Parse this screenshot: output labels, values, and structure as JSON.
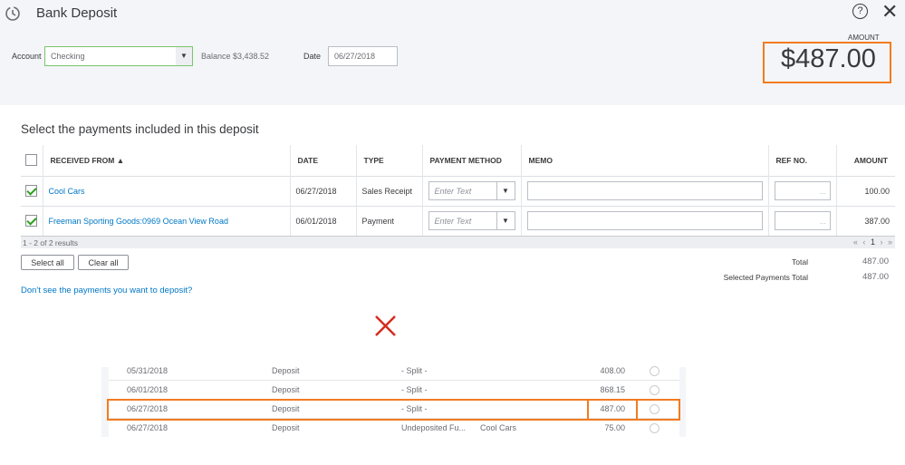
{
  "header": {
    "title": "Bank Deposit",
    "account_label": "Account",
    "account_value": "Checking",
    "balance": "Balance $3,438.52",
    "date_label": "Date",
    "date_value": "06/27/2018",
    "amount_label": "AMOUNT",
    "amount_value": "$487.00",
    "help": "?",
    "close": "✕"
  },
  "section_title": "Select the payments included in this deposit",
  "table": {
    "columns": [
      "RECEIVED FROM ▲",
      "DATE",
      "TYPE",
      "PAYMENT METHOD",
      "MEMO",
      "REF NO.",
      "AMOUNT"
    ],
    "rows": [
      {
        "checked": true,
        "from": "Cool Cars",
        "date": "06/27/2018",
        "type": "Sales Receipt",
        "method_placeholder": "Enter Text",
        "ref": "...",
        "amount": "100.00"
      },
      {
        "checked": true,
        "from": "Freeman Sporting Goods:0969 Ocean View Road",
        "date": "06/01/2018",
        "type": "Payment",
        "method_placeholder": "Enter Text",
        "ref": "...",
        "amount": "387.00"
      }
    ],
    "results": "1 - 2 of 2 results",
    "pager": {
      "first": "«",
      "prev": "‹",
      "page": "1",
      "next": "›",
      "last": "»"
    }
  },
  "buttons": {
    "select_all": "Select all",
    "clear_all": "Clear all"
  },
  "totals": {
    "total_label": "Total",
    "total": "487.00",
    "selected_label": "Selected Payments Total",
    "selected": "487.00"
  },
  "help_link": "Don't see the payments you want to deposit?",
  "register": [
    {
      "date": "05/31/2018",
      "type": "Deposit",
      "account": "- Split -",
      "payee": "",
      "amount": "408.00"
    },
    {
      "date": "06/01/2018",
      "type": "Deposit",
      "account": "- Split -",
      "payee": "",
      "amount": "868.15"
    },
    {
      "date": "06/27/2018",
      "type": "Deposit",
      "account": "- Split -",
      "payee": "",
      "amount": "487.00"
    },
    {
      "date": "06/27/2018",
      "type": "Deposit",
      "account": "Undeposited Fu...",
      "payee": "Cool Cars",
      "amount": "75.00"
    }
  ],
  "colors": {
    "highlight": "#f37b20",
    "link": "#0077c5",
    "check": "#2ca01c",
    "cross": "#d52b1e"
  }
}
